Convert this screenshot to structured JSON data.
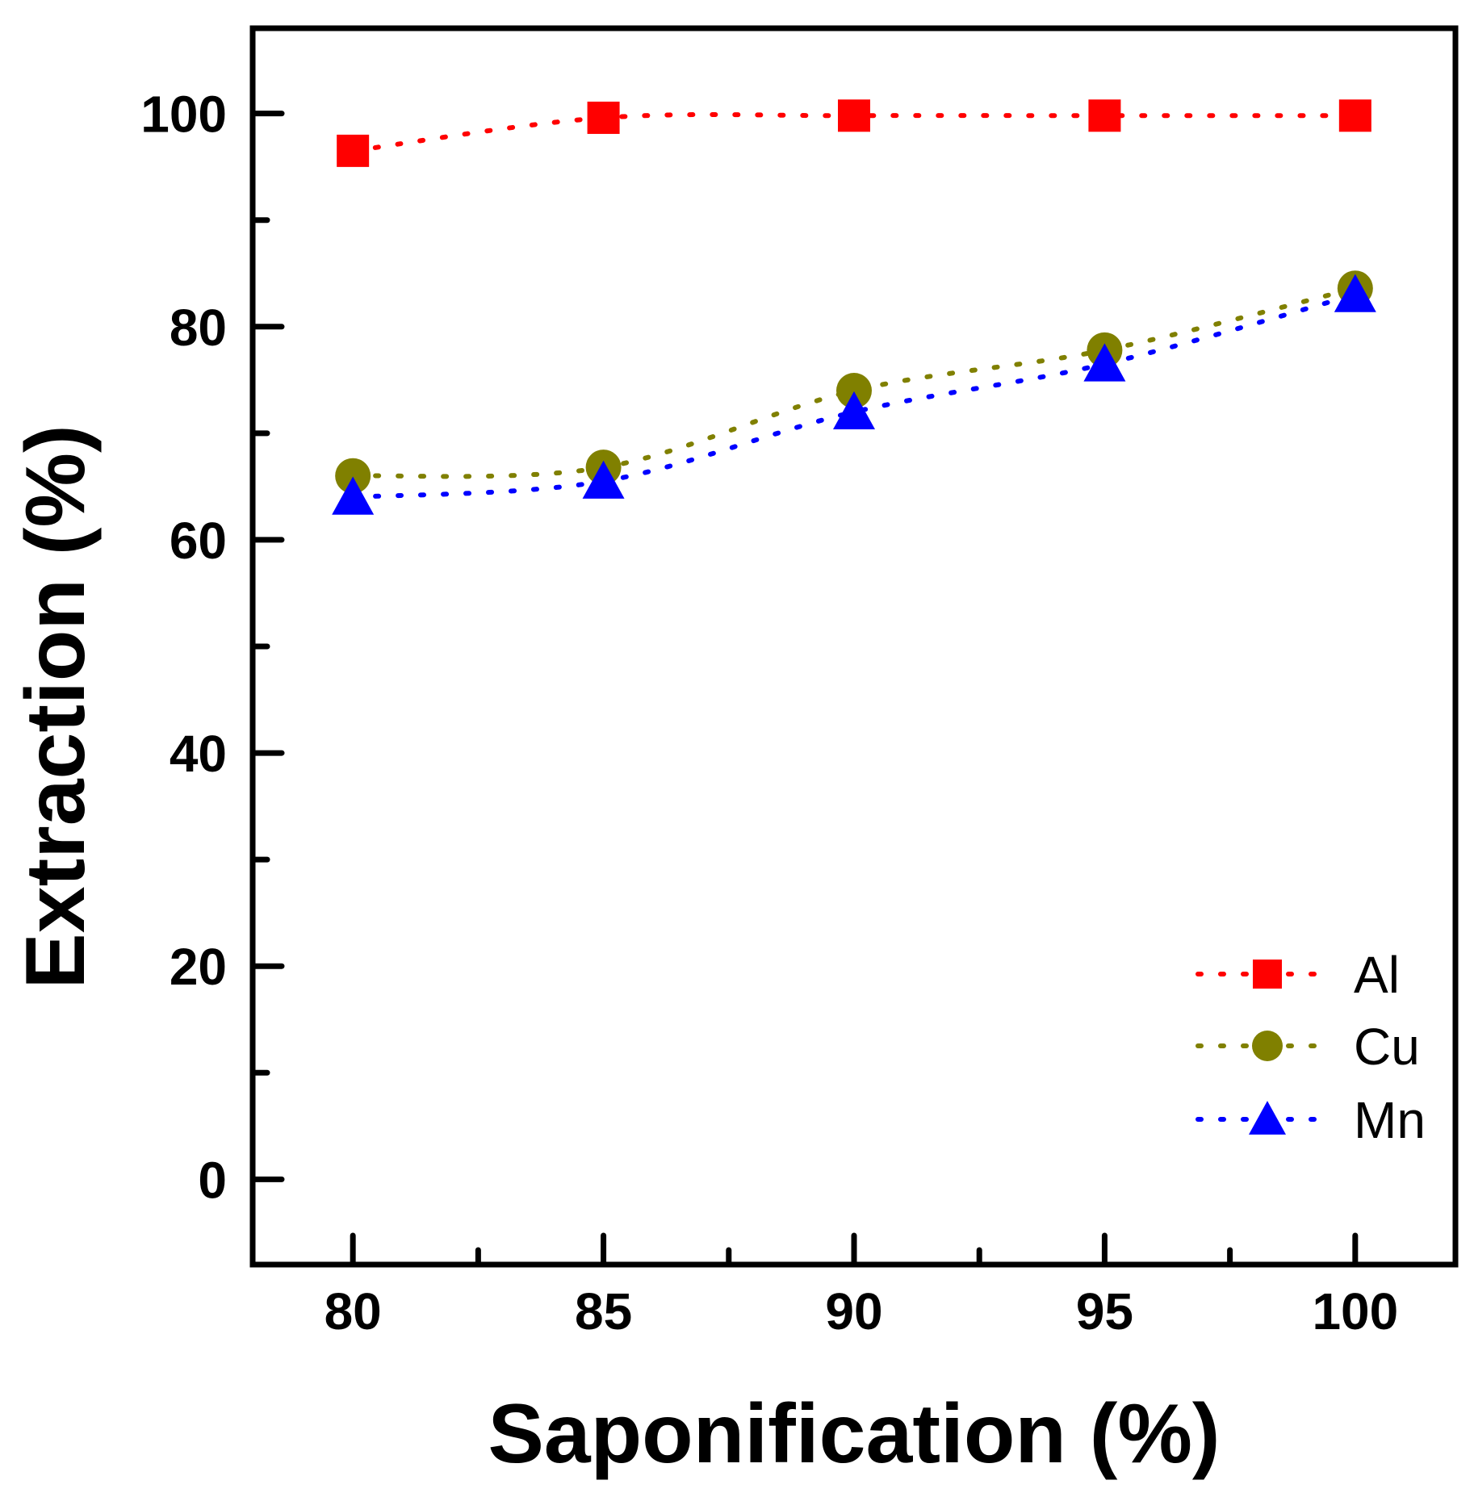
{
  "chart_data": {
    "type": "scatter",
    "title": "",
    "xlabel": "Saponification (%)",
    "ylabel": "Extraction (%)",
    "xlim": [
      78,
      102
    ],
    "ylim": [
      -8,
      108
    ],
    "x": [
      80,
      85,
      90,
      95,
      100
    ],
    "xticks": [
      80,
      85,
      90,
      95,
      100
    ],
    "yticks": [
      0,
      20,
      40,
      60,
      80,
      100
    ],
    "xtick_labels": [
      "80",
      "85",
      "90",
      "95",
      "100"
    ],
    "ytick_labels": [
      "0",
      "20",
      "40",
      "60",
      "80",
      "100"
    ],
    "grid": false,
    "legend_position": "bottom-right",
    "line_style": "dotted",
    "series": [
      {
        "name": "Al",
        "marker": "square",
        "color": "#ff0000",
        "values": [
          96.5,
          99.6,
          99.8,
          99.8,
          99.8
        ]
      },
      {
        "name": "Cu",
        "marker": "circle",
        "color": "#808000",
        "values": [
          66,
          66.8,
          74,
          77.8,
          83.6
        ]
      },
      {
        "name": "Mn",
        "marker": "triangle",
        "color": "#0000ff",
        "values": [
          64,
          65.5,
          72,
          76.5,
          83
        ]
      }
    ]
  }
}
